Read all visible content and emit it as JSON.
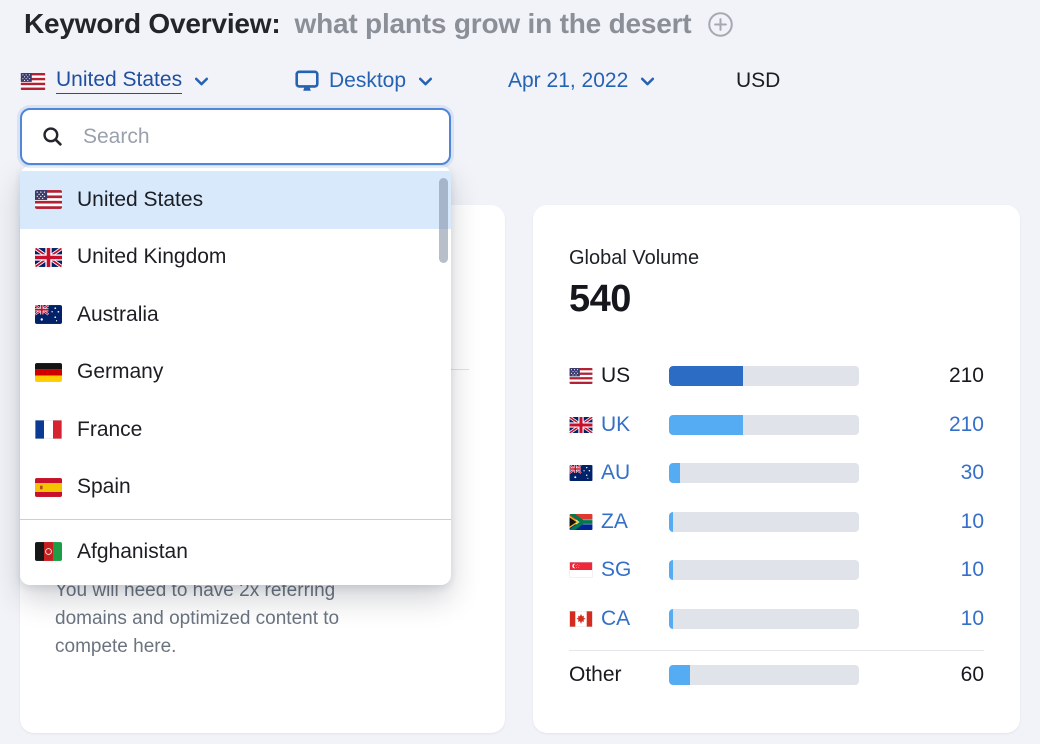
{
  "header": {
    "title": "Keyword Overview:",
    "keyword": "what plants grow in the desert"
  },
  "filters": {
    "database": {
      "label": "United States",
      "flag": "us"
    },
    "device": {
      "label": "Desktop"
    },
    "date": {
      "label": "Apr 21, 2022"
    },
    "currency": "USD"
  },
  "country_dropdown": {
    "search_placeholder": "Search",
    "items": [
      {
        "label": "United States",
        "flag": "us",
        "selected": true
      },
      {
        "label": "United Kingdom",
        "flag": "gb"
      },
      {
        "label": "Australia",
        "flag": "au"
      },
      {
        "label": "Germany",
        "flag": "de"
      },
      {
        "label": "France",
        "flag": "fr"
      },
      {
        "label": "Spain",
        "flag": "es"
      },
      {
        "label": "Afghanistan",
        "flag": "af",
        "divider_before": true
      }
    ]
  },
  "difficulty_card": {
    "description_lines": [
      "You will need to have 2x referring",
      "domains and optimized content to",
      "compete here."
    ]
  },
  "global_volume_card": {
    "title": "Global Volume",
    "total": "540",
    "rows": [
      {
        "code": "US",
        "flag": "us",
        "value": "210",
        "percent": 38.9,
        "current": true
      },
      {
        "code": "UK",
        "flag": "gb",
        "value": "210",
        "percent": 38.9
      },
      {
        "code": "AU",
        "flag": "au",
        "value": "30",
        "percent": 5.6
      },
      {
        "code": "ZA",
        "flag": "za",
        "value": "10",
        "percent": 1.9
      },
      {
        "code": "SG",
        "flag": "sg",
        "value": "10",
        "percent": 1.9
      },
      {
        "code": "CA",
        "flag": "ca",
        "value": "10",
        "percent": 1.9
      }
    ],
    "other_row": {
      "label": "Other",
      "value": "60",
      "percent": 11.1
    }
  },
  "colors": {
    "page_background": "#f1f3f8",
    "filter_link_blue": "#2562b2",
    "link_blue": "#3470c8",
    "bar_dark_blue": "#2d6cc4",
    "bar_light_blue": "#55acf2",
    "bar_track": "#e1e3eb",
    "selected_row_highlight": "#d8e9fc",
    "keyword_gray": "#8b8f97"
  }
}
